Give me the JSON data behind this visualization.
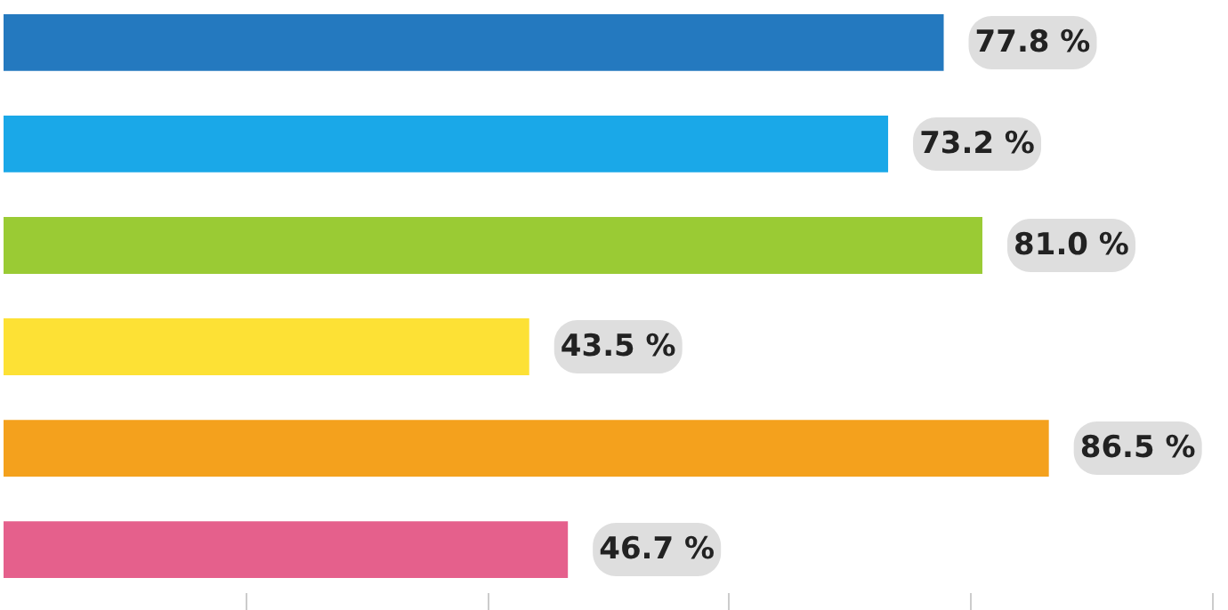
{
  "chart_data": {
    "type": "bar",
    "orientation": "horizontal",
    "categories": [
      null,
      null,
      null,
      null,
      null,
      null
    ],
    "values": [
      77.8,
      73.2,
      81.0,
      43.5,
      86.5,
      46.7
    ],
    "colors": [
      "#2479bf",
      "#1aa8e8",
      "#9acb34",
      "#fde135",
      "#f4a11d",
      "#e5608c"
    ],
    "value_labels": [
      "77.8 %",
      "73.2 %",
      "81.0 %",
      "43.5 %",
      "86.5 %",
      "46.7 %"
    ],
    "xticks": [
      {
        "value": 20,
        "label": null
      },
      {
        "value": 40,
        "label": null
      },
      {
        "value": 60,
        "label": null
      },
      {
        "value": 80,
        "label": null
      },
      {
        "value": 100,
        "label": null
      }
    ],
    "grid": false
  }
}
